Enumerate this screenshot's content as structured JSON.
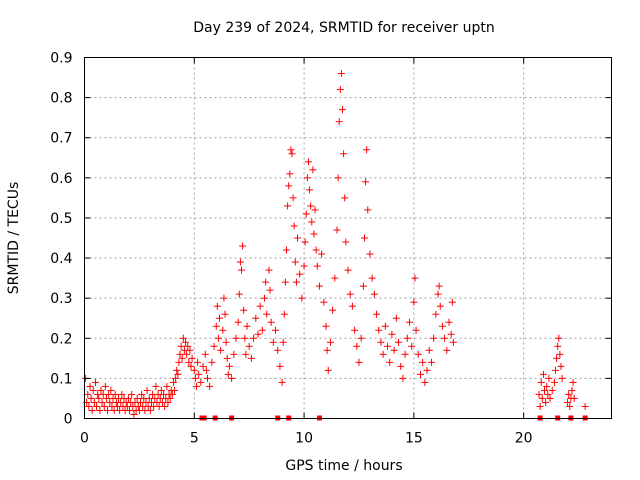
{
  "chart_data": {
    "type": "scatter",
    "title": "Day 239 of 2024, SRMTID for receiver uptn",
    "xlabel": "GPS time / hours",
    "ylabel": "SRMTID / TECUs",
    "xlim": [
      0,
      24
    ],
    "ylim": [
      0,
      0.9
    ],
    "xticks": [
      "0",
      "5",
      "10",
      "15",
      "20"
    ],
    "yticks": [
      "0",
      "0.1",
      "0.2",
      "0.3",
      "0.4",
      "0.5",
      "0.6",
      "0.7",
      "0.8",
      "0.9"
    ],
    "grid": true,
    "marker": "+",
    "color": "#ff0000",
    "series": [
      {
        "name": "SRMTID",
        "points": [
          [
            0.05,
            0.1
          ],
          [
            0.1,
            0.04
          ],
          [
            0.15,
            0.06
          ],
          [
            0.2,
            0.03
          ],
          [
            0.25,
            0.08
          ],
          [
            0.3,
            0.05
          ],
          [
            0.35,
            0.02
          ],
          [
            0.4,
            0.07
          ],
          [
            0.45,
            0.04
          ],
          [
            0.5,
            0.09
          ],
          [
            0.55,
            0.03
          ],
          [
            0.6,
            0.06
          ],
          [
            0.65,
            0.05
          ],
          [
            0.7,
            0.02
          ],
          [
            0.75,
            0.07
          ],
          [
            0.8,
            0.04
          ],
          [
            0.85,
            0.06
          ],
          [
            0.9,
            0.03
          ],
          [
            0.95,
            0.08
          ],
          [
            1.0,
            0.05
          ],
          [
            1.05,
            0.02
          ],
          [
            1.1,
            0.06
          ],
          [
            1.15,
            0.04
          ],
          [
            1.2,
            0.07
          ],
          [
            1.25,
            0.03
          ],
          [
            1.3,
            0.05
          ],
          [
            1.35,
            0.02
          ],
          [
            1.4,
            0.06
          ],
          [
            1.45,
            0.04
          ],
          [
            1.5,
            0.03
          ],
          [
            1.55,
            0.05
          ],
          [
            1.6,
            0.02
          ],
          [
            1.65,
            0.04
          ],
          [
            1.7,
            0.06
          ],
          [
            1.75,
            0.03
          ],
          [
            1.8,
            0.05
          ],
          [
            1.85,
            0.02
          ],
          [
            1.9,
            0.04
          ],
          [
            1.95,
            0.03
          ],
          [
            2.0,
            0.05
          ],
          [
            2.05,
            0.02
          ],
          [
            2.1,
            0.04
          ],
          [
            2.15,
            0.06
          ],
          [
            2.2,
            0.03
          ],
          [
            2.25,
            0.01
          ],
          [
            2.3,
            0.04
          ],
          [
            2.35,
            0.02
          ],
          [
            2.4,
            0.05
          ],
          [
            2.45,
            0.03
          ],
          [
            2.5,
            0.02
          ],
          [
            2.55,
            0.04
          ],
          [
            2.6,
            0.06
          ],
          [
            2.65,
            0.03
          ],
          [
            2.7,
            0.05
          ],
          [
            2.75,
            0.02
          ],
          [
            2.8,
            0.04
          ],
          [
            2.85,
            0.07
          ],
          [
            2.9,
            0.03
          ],
          [
            2.95,
            0.05
          ],
          [
            3.0,
            0.02
          ],
          [
            3.05,
            0.04
          ],
          [
            3.1,
            0.06
          ],
          [
            3.15,
            0.03
          ],
          [
            3.2,
            0.05
          ],
          [
            3.25,
            0.08
          ],
          [
            3.3,
            0.04
          ],
          [
            3.35,
            0.06
          ],
          [
            3.4,
            0.03
          ],
          [
            3.45,
            0.05
          ],
          [
            3.5,
            0.07
          ],
          [
            3.55,
            0.04
          ],
          [
            3.6,
            0.06
          ],
          [
            3.65,
            0.03
          ],
          [
            3.7,
            0.05
          ],
          [
            3.75,
            0.08
          ],
          [
            3.8,
            0.04
          ],
          [
            3.85,
            0.06
          ],
          [
            3.9,
            0.05
          ],
          [
            3.95,
            0.07
          ],
          [
            4.0,
            0.06
          ],
          [
            4.05,
            0.09
          ],
          [
            4.1,
            0.07
          ],
          [
            4.15,
            0.1
          ],
          [
            4.2,
            0.12
          ],
          [
            4.25,
            0.11
          ],
          [
            4.3,
            0.14
          ],
          [
            4.35,
            0.16
          ],
          [
            4.4,
            0.18
          ],
          [
            4.45,
            0.15
          ],
          [
            4.5,
            0.2
          ],
          [
            4.55,
            0.17
          ],
          [
            4.6,
            0.19
          ],
          [
            4.65,
            0.16
          ],
          [
            4.7,
            0.18
          ],
          [
            4.75,
            0.14
          ],
          [
            4.8,
            0.17
          ],
          [
            4.85,
            0.13
          ],
          [
            4.9,
            0.15
          ],
          [
            5.0,
            0.12
          ],
          [
            5.05,
            0.1
          ],
          [
            5.1,
            0.08
          ],
          [
            5.15,
            0.14
          ],
          [
            5.2,
            0.11
          ],
          [
            5.3,
            0.09
          ],
          [
            5.4,
            0.13
          ],
          [
            5.5,
            0.16
          ],
          [
            5.55,
            0.12
          ],
          [
            5.6,
            0.1
          ],
          [
            5.7,
            0.08
          ],
          [
            5.8,
            0.14
          ],
          [
            5.9,
            0.18
          ],
          [
            6.0,
            0.23
          ],
          [
            6.05,
            0.28
          ],
          [
            6.1,
            0.2
          ],
          [
            6.15,
            0.25
          ],
          [
            6.2,
            0.17
          ],
          [
            6.3,
            0.22
          ],
          [
            6.35,
            0.3
          ],
          [
            6.4,
            0.26
          ],
          [
            6.45,
            0.19
          ],
          [
            6.5,
            0.15
          ],
          [
            6.55,
            0.11
          ],
          [
            6.6,
            0.13
          ],
          [
            6.7,
            0.1
          ],
          [
            6.8,
            0.16
          ],
          [
            6.9,
            0.2
          ],
          [
            7.0,
            0.24
          ],
          [
            7.05,
            0.31
          ],
          [
            7.1,
            0.39
          ],
          [
            7.15,
            0.37
          ],
          [
            7.2,
            0.43
          ],
          [
            7.25,
            0.27
          ],
          [
            7.3,
            0.2
          ],
          [
            7.35,
            0.16
          ],
          [
            7.4,
            0.23
          ],
          [
            7.5,
            0.18
          ],
          [
            7.6,
            0.15
          ],
          [
            7.7,
            0.2
          ],
          [
            7.8,
            0.25
          ],
          [
            7.9,
            0.21
          ],
          [
            8.0,
            0.28
          ],
          [
            8.1,
            0.22
          ],
          [
            8.2,
            0.3
          ],
          [
            8.25,
            0.34
          ],
          [
            8.3,
            0.26
          ],
          [
            8.4,
            0.37
          ],
          [
            8.45,
            0.32
          ],
          [
            8.5,
            0.24
          ],
          [
            8.6,
            0.19
          ],
          [
            8.7,
            0.22
          ],
          [
            8.8,
            0.17
          ],
          [
            8.9,
            0.13
          ],
          [
            9.0,
            0.09
          ],
          [
            9.05,
            0.19
          ],
          [
            9.1,
            0.26
          ],
          [
            9.15,
            0.34
          ],
          [
            9.2,
            0.42
          ],
          [
            9.25,
            0.53
          ],
          [
            9.3,
            0.58
          ],
          [
            9.35,
            0.61
          ],
          [
            9.4,
            0.67
          ],
          [
            9.45,
            0.66
          ],
          [
            9.5,
            0.55
          ],
          [
            9.55,
            0.48
          ],
          [
            9.6,
            0.39
          ],
          [
            9.65,
            0.34
          ],
          [
            9.7,
            0.45
          ],
          [
            9.8,
            0.36
          ],
          [
            9.9,
            0.3
          ],
          [
            10.0,
            0.38
          ],
          [
            10.05,
            0.44
          ],
          [
            10.1,
            0.51
          ],
          [
            10.15,
            0.6
          ],
          [
            10.2,
            0.64
          ],
          [
            10.25,
            0.57
          ],
          [
            10.3,
            0.53
          ],
          [
            10.35,
            0.49
          ],
          [
            10.4,
            0.62
          ],
          [
            10.45,
            0.46
          ],
          [
            10.5,
            0.52
          ],
          [
            10.55,
            0.42
          ],
          [
            10.6,
            0.38
          ],
          [
            10.7,
            0.33
          ],
          [
            10.8,
            0.41
          ],
          [
            10.9,
            0.29
          ],
          [
            11.0,
            0.23
          ],
          [
            11.05,
            0.17
          ],
          [
            11.1,
            0.12
          ],
          [
            11.2,
            0.19
          ],
          [
            11.3,
            0.27
          ],
          [
            11.4,
            0.35
          ],
          [
            11.5,
            0.47
          ],
          [
            11.55,
            0.6
          ],
          [
            11.6,
            0.74
          ],
          [
            11.65,
            0.82
          ],
          [
            11.7,
            0.86
          ],
          [
            11.75,
            0.77
          ],
          [
            11.8,
            0.66
          ],
          [
            11.85,
            0.55
          ],
          [
            11.9,
            0.44
          ],
          [
            12.0,
            0.37
          ],
          [
            12.1,
            0.31
          ],
          [
            12.2,
            0.28
          ],
          [
            12.3,
            0.22
          ],
          [
            12.4,
            0.18
          ],
          [
            12.5,
            0.14
          ],
          [
            12.6,
            0.2
          ],
          [
            12.7,
            0.33
          ],
          [
            12.75,
            0.45
          ],
          [
            12.8,
            0.59
          ],
          [
            12.85,
            0.67
          ],
          [
            12.9,
            0.52
          ],
          [
            13.0,
            0.41
          ],
          [
            13.1,
            0.35
          ],
          [
            13.2,
            0.31
          ],
          [
            13.3,
            0.26
          ],
          [
            13.4,
            0.22
          ],
          [
            13.5,
            0.19
          ],
          [
            13.6,
            0.16
          ],
          [
            13.7,
            0.23
          ],
          [
            13.8,
            0.18
          ],
          [
            13.9,
            0.14
          ],
          [
            14.0,
            0.21
          ],
          [
            14.1,
            0.17
          ],
          [
            14.2,
            0.25
          ],
          [
            14.3,
            0.19
          ],
          [
            14.4,
            0.13
          ],
          [
            14.5,
            0.1
          ],
          [
            14.6,
            0.16
          ],
          [
            14.7,
            0.2
          ],
          [
            14.8,
            0.24
          ],
          [
            14.9,
            0.18
          ],
          [
            15.0,
            0.29
          ],
          [
            15.05,
            0.35
          ],
          [
            15.1,
            0.22
          ],
          [
            15.2,
            0.16
          ],
          [
            15.3,
            0.11
          ],
          [
            15.4,
            0.14
          ],
          [
            15.5,
            0.09
          ],
          [
            15.6,
            0.12
          ],
          [
            15.7,
            0.17
          ],
          [
            15.8,
            0.14
          ],
          [
            15.9,
            0.2
          ],
          [
            16.0,
            0.26
          ],
          [
            16.1,
            0.31
          ],
          [
            16.15,
            0.33
          ],
          [
            16.2,
            0.28
          ],
          [
            16.3,
            0.23
          ],
          [
            16.4,
            0.2
          ],
          [
            16.5,
            0.17
          ],
          [
            16.6,
            0.24
          ],
          [
            16.7,
            0.21
          ],
          [
            16.75,
            0.29
          ],
          [
            16.8,
            0.19
          ],
          [
            20.7,
            0.06
          ],
          [
            20.75,
            0.03
          ],
          [
            20.8,
            0.09
          ],
          [
            20.85,
            0.05
          ],
          [
            20.9,
            0.11
          ],
          [
            20.95,
            0.07
          ],
          [
            21.0,
            0.04
          ],
          [
            21.05,
            0.08
          ],
          [
            21.1,
            0.06
          ],
          [
            21.15,
            0.1
          ],
          [
            21.2,
            0.05
          ],
          [
            21.3,
            0.07
          ],
          [
            21.4,
            0.09
          ],
          [
            21.45,
            0.12
          ],
          [
            21.5,
            0.15
          ],
          [
            21.55,
            0.18
          ],
          [
            21.6,
            0.2
          ],
          [
            21.65,
            0.16
          ],
          [
            21.7,
            0.13
          ],
          [
            21.75,
            0.1
          ],
          [
            22.0,
            0.04
          ],
          [
            22.05,
            0.06
          ],
          [
            22.1,
            0.03
          ],
          [
            22.15,
            0.05
          ],
          [
            22.2,
            0.07
          ],
          [
            22.25,
            0.09
          ],
          [
            22.3,
            0.05
          ],
          [
            22.8,
            0.03
          ]
        ]
      }
    ],
    "baseline_markers": [
      5.35,
      5.45,
      5.95,
      6.7,
      8.8,
      9.3,
      10.7,
      20.75,
      21.55,
      22.15,
      22.8
    ]
  }
}
